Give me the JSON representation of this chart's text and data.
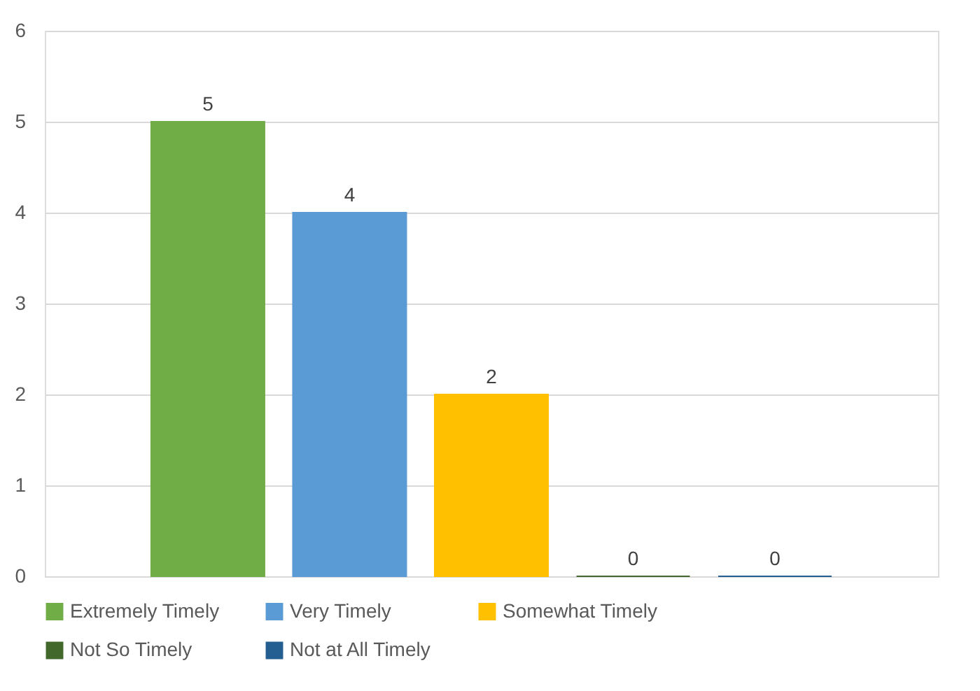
{
  "chart_data": {
    "type": "bar",
    "categories": [
      null
    ],
    "series": [
      {
        "name": "Extremely Timely",
        "color": "#70ad47",
        "values": [
          5
        ]
      },
      {
        "name": "Very Timely",
        "color": "#5b9bd5",
        "values": [
          4
        ]
      },
      {
        "name": "Somewhat Timely",
        "color": "#ffc000",
        "values": [
          2
        ]
      },
      {
        "name": "Not So Timely",
        "color": "#43682b",
        "values": [
          0
        ]
      },
      {
        "name": "Not at All Timely",
        "color": "#255e91",
        "values": [
          0
        ]
      }
    ],
    "ylim": [
      0,
      6
    ],
    "yticks": [
      0,
      1,
      2,
      3,
      4,
      5,
      6
    ],
    "grid": "y",
    "legend": "bottom",
    "data_labels": true,
    "tick_labels": "y"
  }
}
